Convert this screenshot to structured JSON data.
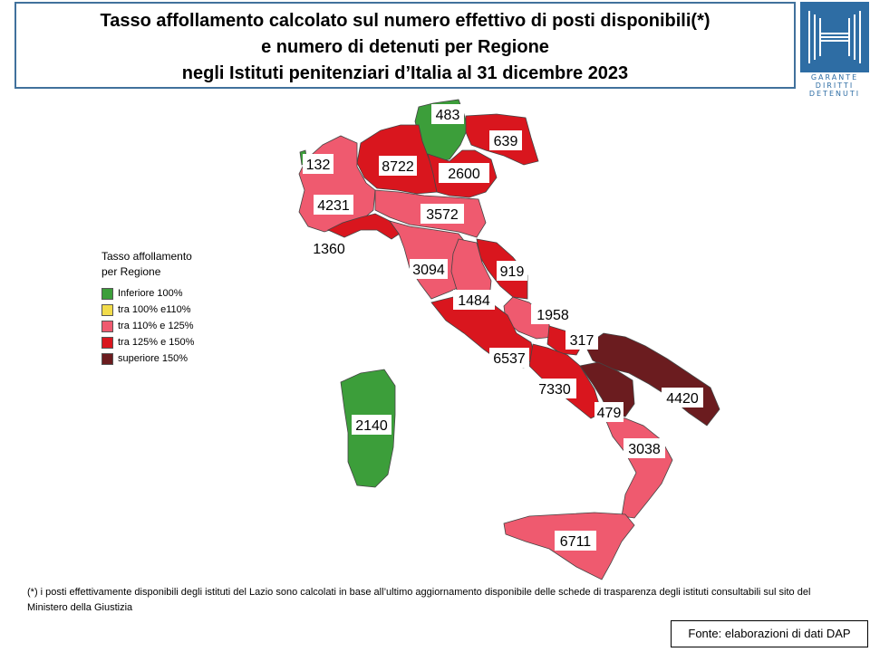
{
  "title": {
    "line1": "Tasso affollamento calcolato sul numero effettivo di posti disponibili(*)",
    "line2": "e numero di detenuti per Regione",
    "line3": "negli Istituti penitenziari d’Italia al 31 dicembre 2023"
  },
  "logo": {
    "text1": "GARANTE",
    "text2": "DIRITTI",
    "text3": "DETENUTI",
    "icon": "garante-logo-icon"
  },
  "legend": {
    "title_line1": "Tasso affollamento",
    "title_line2": "per Regione",
    "items": [
      {
        "label": "Inferiore 100%",
        "color": "#3c9e3a"
      },
      {
        "label": "tra 100% e110%",
        "color": "#f2dc4b"
      },
      {
        "label": "tra 110% e 125%",
        "color": "#ef5a6f"
      },
      {
        "label": "tra 125% e 150%",
        "color": "#d9161e"
      },
      {
        "label": "superiore 150%",
        "color": "#6b1c1f"
      }
    ]
  },
  "regions": [
    {
      "name": "Valle d'Aosta",
      "detenuti": "132",
      "color": "#3c9e3a"
    },
    {
      "name": "Trentino-Alto Adige",
      "detenuti": "483",
      "color": "#3c9e3a"
    },
    {
      "name": "Friuli-Venezia Giulia",
      "detenuti": "639",
      "color": "#d9161e"
    },
    {
      "name": "Lombardia",
      "detenuti": "8722",
      "color": "#d9161e"
    },
    {
      "name": "Veneto",
      "detenuti": "2600",
      "color": "#d9161e"
    },
    {
      "name": "Piemonte",
      "detenuti": "4231",
      "color": "#ef5a6f"
    },
    {
      "name": "Emilia-Romagna",
      "detenuti": "3572",
      "color": "#ef5a6f"
    },
    {
      "name": "Liguria",
      "detenuti": "1360",
      "color": "#d9161e"
    },
    {
      "name": "Toscana",
      "detenuti": "3094",
      "color": "#ef5a6f"
    },
    {
      "name": "Marche",
      "detenuti": "919",
      "color": "#d9161e"
    },
    {
      "name": "Umbria",
      "detenuti": "1484",
      "color": "#ef5a6f"
    },
    {
      "name": "Abruzzo",
      "detenuti": "1958",
      "color": "#ef5a6f"
    },
    {
      "name": "Molise",
      "detenuti": "317",
      "color": "#d9161e"
    },
    {
      "name": "Lazio",
      "detenuti": "6537",
      "color": "#d9161e"
    },
    {
      "name": "Campania",
      "detenuti": "7330",
      "color": "#d9161e"
    },
    {
      "name": "Puglia",
      "detenuti": "4420",
      "color": "#6b1c1f"
    },
    {
      "name": "Basilicata",
      "detenuti": "479",
      "color": "#6b1c1f"
    },
    {
      "name": "Calabria",
      "detenuti": "3038",
      "color": "#ef5a6f"
    },
    {
      "name": "Sicilia",
      "detenuti": "6711",
      "color": "#ef5a6f"
    },
    {
      "name": "Sardegna",
      "detenuti": "2140",
      "color": "#3c9e3a"
    }
  ],
  "footnote": "(*) i posti effettivamente disponibili  degli istituti del Lazio sono calcolati in base all’ultimo aggiornamento disponibile  delle schede di trasparenza degli istituti consultabili sul sito del Ministero della Giustizia",
  "source": "Fonte: elaborazioni di dati DAP"
}
